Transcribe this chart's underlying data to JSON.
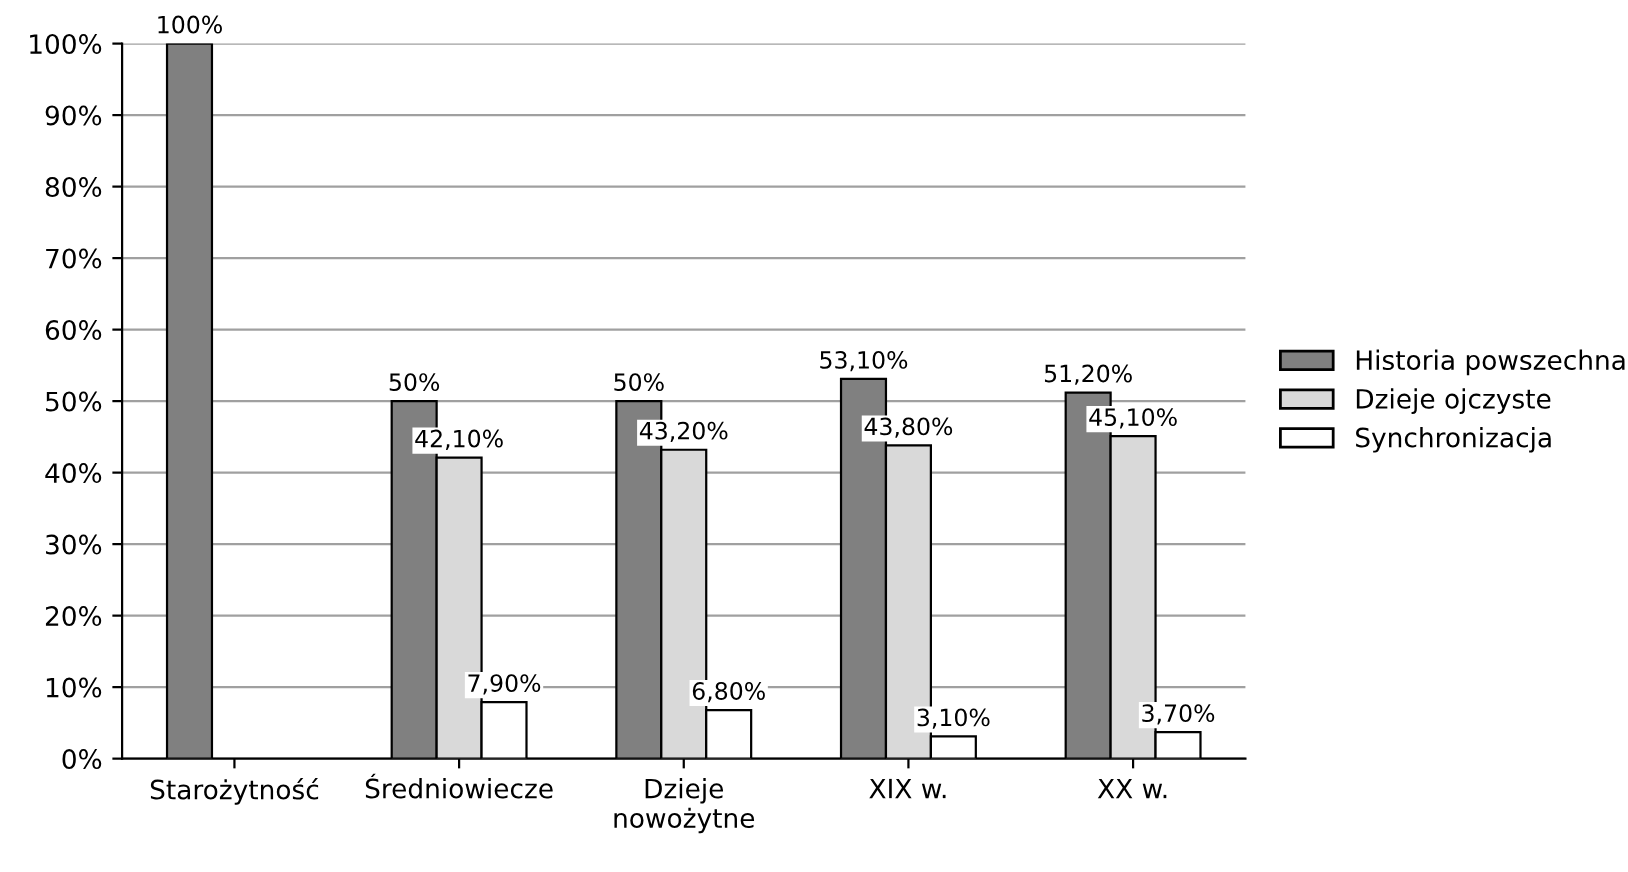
{
  "chart_data": {
    "type": "bar",
    "categories": [
      "Starożytność",
      "Średniowiecze",
      "Dzieje\nnowożytne",
      "XIX w.",
      "XX w."
    ],
    "series": [
      {
        "name": "Historia powszechna",
        "color": "#808080",
        "values": [
          100,
          50,
          50,
          53.1,
          51.2
        ],
        "value_labels": [
          "100%",
          "50%",
          "50%",
          "53,10%",
          "51,20%"
        ]
      },
      {
        "name": "Dzieje ojczyste",
        "color": "#d9d9d9",
        "values": [
          null,
          42.1,
          43.2,
          43.8,
          45.1
        ],
        "value_labels": [
          null,
          "42,10%",
          "43,20%",
          "43,80%",
          "45,10%"
        ]
      },
      {
        "name": "Synchronizacja",
        "color": "#ffffff",
        "values": [
          null,
          7.9,
          6.8,
          3.1,
          3.7
        ],
        "value_labels": [
          null,
          "7,90%",
          "6,80%",
          "3,10%",
          "3,70%"
        ]
      }
    ],
    "ylim": [
      0,
      100
    ],
    "yticks": [
      {
        "value": 0,
        "label": "0%"
      },
      {
        "value": 10,
        "label": "10%"
      },
      {
        "value": 20,
        "label": "20%"
      },
      {
        "value": 30,
        "label": "30%"
      },
      {
        "value": 40,
        "label": "40%"
      },
      {
        "value": 50,
        "label": "50%"
      },
      {
        "value": 60,
        "label": "60%"
      },
      {
        "value": 70,
        "label": "70%"
      },
      {
        "value": 80,
        "label": "80%"
      },
      {
        "value": 90,
        "label": "90%"
      },
      {
        "value": 100,
        "label": "100%"
      }
    ],
    "grid": "y",
    "legend": "right"
  }
}
